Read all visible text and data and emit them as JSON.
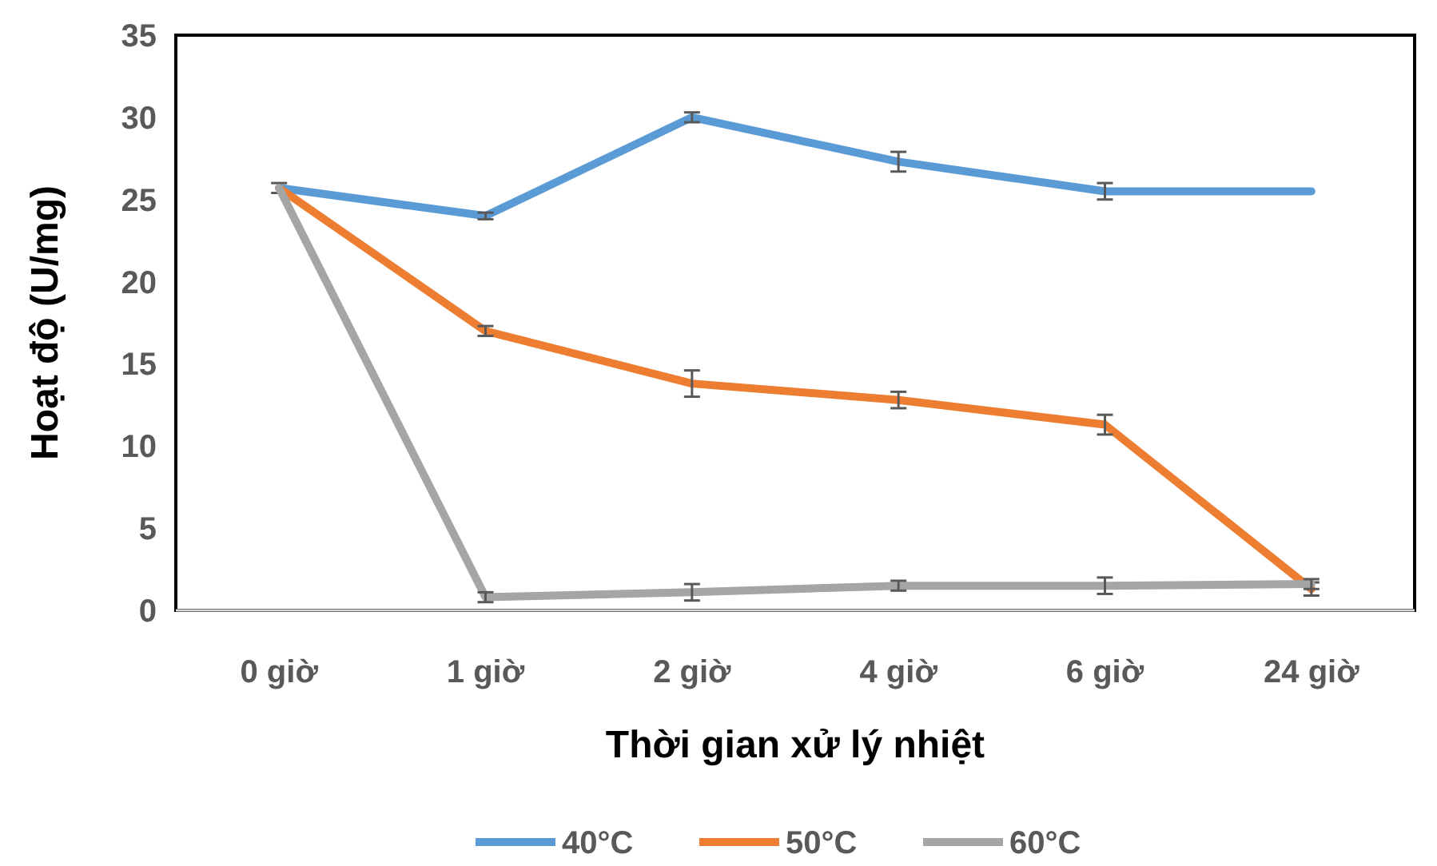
{
  "chart_data": {
    "type": "line",
    "xlabel": "Thời gian xử lý nhiệt",
    "ylabel": "Hoạt độ (U/mg)",
    "categories": [
      "0 giờ",
      "1 giờ",
      "2 giờ",
      "4 giờ",
      "6 giờ",
      "24 giờ"
    ],
    "series": [
      {
        "name": "40°C",
        "color": "#5b9bd5",
        "values": [
          25.7,
          24,
          30,
          27.3,
          25.5,
          25.5
        ],
        "errors": [
          0.3,
          0.2,
          0.3,
          0.6,
          0.5,
          null
        ]
      },
      {
        "name": "50°C",
        "color": "#ed7d31",
        "values": [
          25.7,
          17,
          13.8,
          12.8,
          11.3,
          1.3
        ],
        "errors": [
          null,
          0.3,
          0.8,
          0.5,
          0.6,
          0.4
        ]
      },
      {
        "name": "60°C",
        "color": "#a5a5a5",
        "values": [
          25.7,
          0.8,
          1.1,
          1.5,
          1.5,
          1.6
        ],
        "errors": [
          null,
          0.3,
          0.5,
          0.3,
          0.5,
          0.3
        ]
      }
    ],
    "ylim": [
      0,
      35
    ],
    "yticks": [
      0,
      5,
      10,
      15,
      20,
      25,
      30,
      35
    ],
    "grid": false,
    "legend": "bottom",
    "marker": "none",
    "line_style": "solid"
  }
}
